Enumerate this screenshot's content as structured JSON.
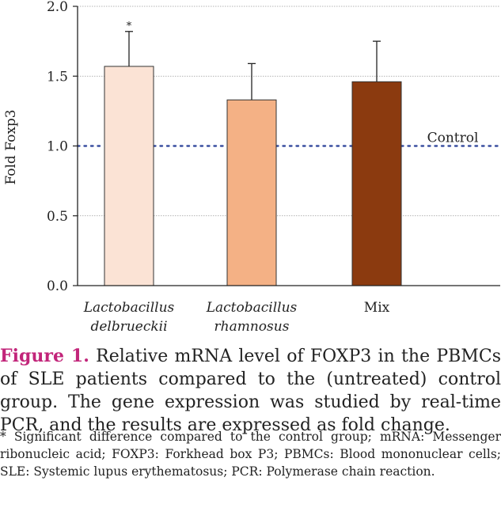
{
  "chart_data": {
    "type": "bar",
    "ylabel": "Fold Foxp3",
    "ylim": [
      0,
      2.0
    ],
    "yticks": [
      0.0,
      0.5,
      1.0,
      1.5,
      2.0
    ],
    "ytick_labels": [
      "0.0",
      "0.5",
      "1.0",
      "1.5",
      "2.0"
    ],
    "grid": true,
    "categories": [
      {
        "line1": "Lactobacillus",
        "line2": "delbrueckii",
        "italic": true
      },
      {
        "line1": "Lactobacillus",
        "line2": "rhamnosus",
        "italic": true
      },
      {
        "line1": "Mix",
        "line2": "",
        "italic": false
      }
    ],
    "values": [
      1.57,
      1.33,
      1.46
    ],
    "errors": [
      0.25,
      0.26,
      0.29
    ],
    "bar_colors": [
      "#fbe3d5",
      "#f4b185",
      "#8b3a0f"
    ],
    "significance": [
      "*",
      "",
      ""
    ],
    "reference_line": {
      "value": 1.0,
      "label": "Control",
      "color": "#3a4fa0"
    }
  },
  "caption": {
    "label": "Figure 1.",
    "text": "Relative mRNA level of FOXP3 in the PBMCs of SLE patients compared to the (untreated) control group. The gene expression was studied by real-time PCR, and the results are expressed as fold change."
  },
  "footnote": "* Significant difference compared to the control group; mRNA: Messenger ribonucleic acid; FOXP3: Forkhead box P3; PBMCs: Blood mononuclear cells; SLE: Systemic lupus erythematosus; PCR: Polymerase chain reaction."
}
